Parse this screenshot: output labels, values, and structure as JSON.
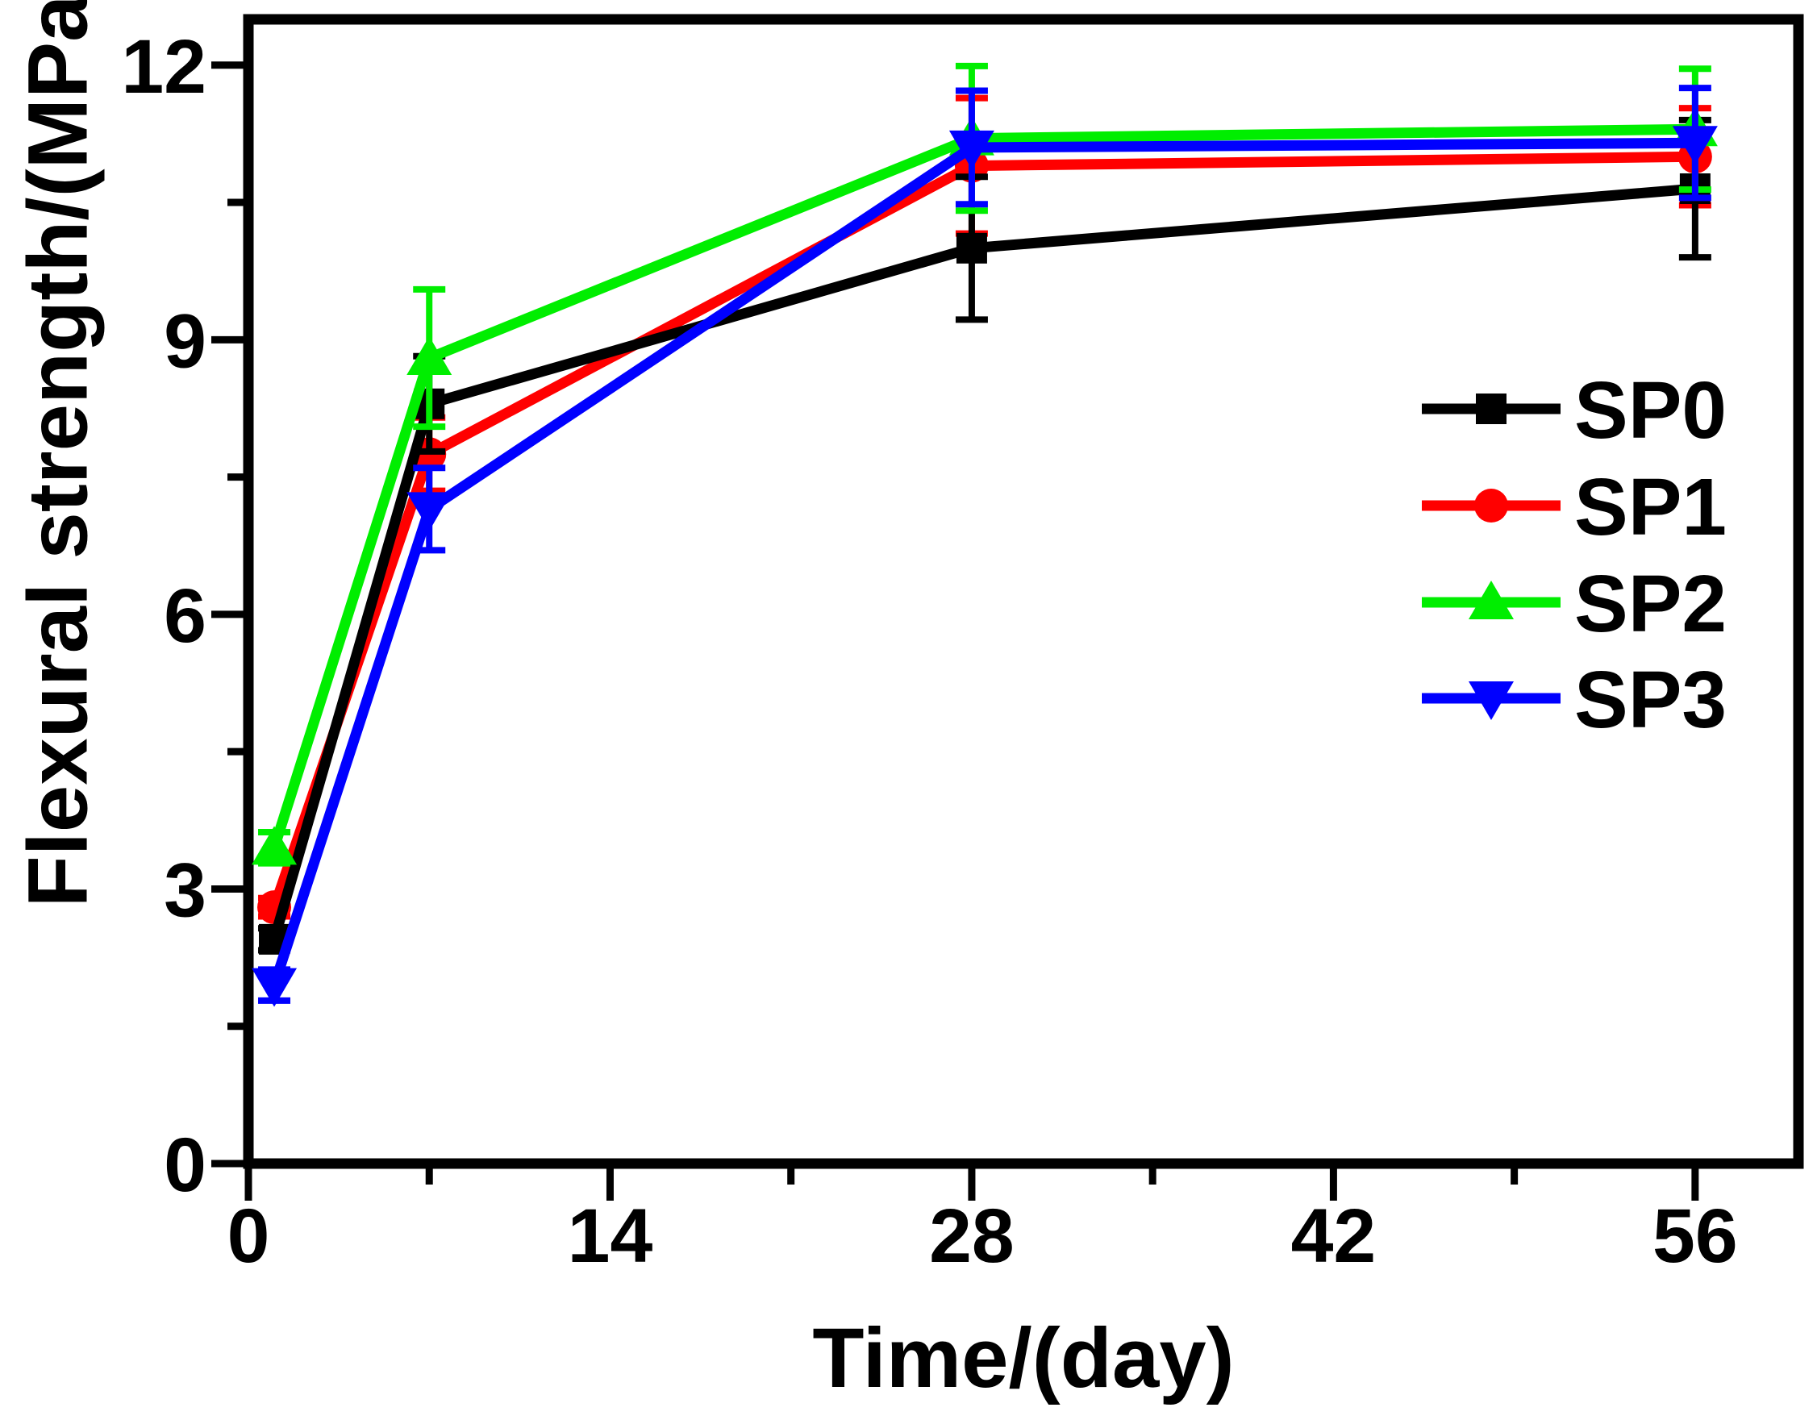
{
  "figure": {
    "background": "#ffffff",
    "axis_color": "#000000"
  },
  "chart_data": {
    "type": "line",
    "title": "",
    "xlabel": "Time/(day)",
    "ylabel": "Flexural strength/(MPa)",
    "x": [
      1,
      7,
      28,
      56
    ],
    "xlim": [
      0,
      60
    ],
    "ylim": [
      0,
      12.5
    ],
    "x_major_ticks": [
      0,
      14,
      28,
      42,
      56
    ],
    "x_minor_ticks": [
      7,
      21,
      35,
      49
    ],
    "y_major_ticks": [
      0,
      3,
      6,
      9,
      12
    ],
    "y_minor_ticks": [
      1.5,
      4.5,
      7.5,
      10.5
    ],
    "grid": false,
    "error_bars": true,
    "legend_position": "right-center",
    "z_order": [
      1,
      0,
      2,
      3
    ],
    "series": [
      {
        "name": "SP0",
        "color": "#000000",
        "marker": "square",
        "values": [
          2.45,
          8.3,
          10.0,
          10.65
        ],
        "errors": [
          0.12,
          0.52,
          0.78,
          0.75
        ]
      },
      {
        "name": "SP1",
        "color": "#ff0000",
        "marker": "circle",
        "values": [
          2.8,
          7.75,
          10.9,
          11.0
        ],
        "errors": [
          0.1,
          0.4,
          0.74,
          0.53
        ]
      },
      {
        "name": "SP2",
        "color": "#00ee00",
        "marker": "triangle-up",
        "values": [
          3.45,
          8.8,
          11.2,
          11.3
        ],
        "errors": [
          0.17,
          0.75,
          0.79,
          0.66
        ]
      },
      {
        "name": "SP3",
        "color": "#0000ff",
        "marker": "triangle-down",
        "values": [
          1.95,
          7.15,
          11.1,
          11.15
        ],
        "errors": [
          0.17,
          0.45,
          0.62,
          0.6
        ]
      }
    ]
  }
}
